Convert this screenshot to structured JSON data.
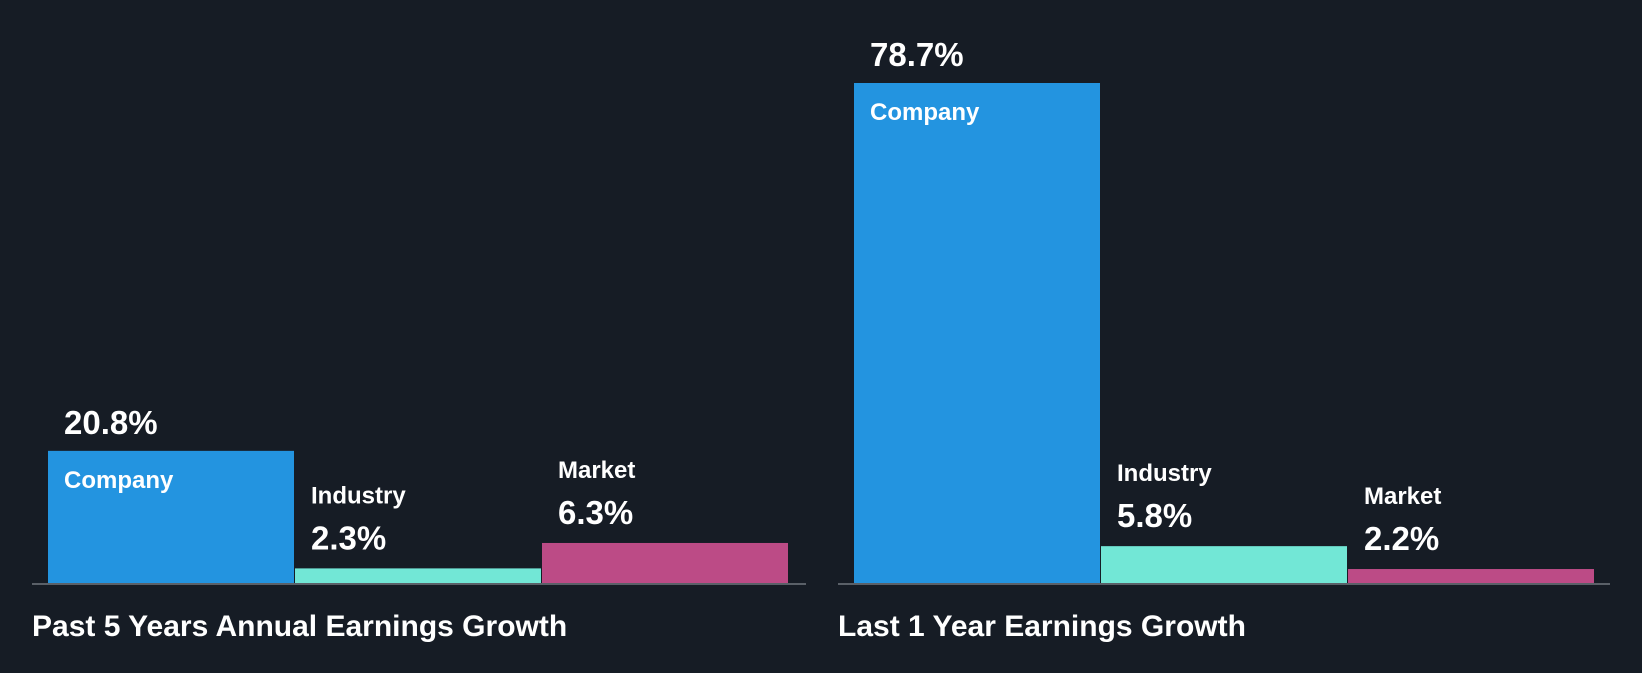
{
  "colors": {
    "background": "#161c25",
    "company": "#2394e0",
    "industry": "#72e7d6",
    "market": "#bc4b86",
    "baseline": "#5a6068",
    "text": "#ffffff"
  },
  "chart_data": [
    {
      "type": "bar",
      "title": "Past 5 Years Annual Earnings Growth",
      "categories": [
        "Company",
        "Industry",
        "Market"
      ],
      "values": [
        20.8,
        2.3,
        6.3
      ],
      "value_labels": [
        "20.8%",
        "2.3%",
        "6.3%"
      ],
      "unit": "%",
      "ylim": [
        0,
        78.7
      ],
      "grid": false,
      "legend": "none"
    },
    {
      "type": "bar",
      "title": "Last 1 Year Earnings Growth",
      "categories": [
        "Company",
        "Industry",
        "Market"
      ],
      "values": [
        78.7,
        5.8,
        2.2
      ],
      "value_labels": [
        "78.7%",
        "5.8%",
        "2.2%"
      ],
      "unit": "%",
      "ylim": [
        0,
        78.7
      ],
      "grid": false,
      "legend": "none"
    }
  ]
}
